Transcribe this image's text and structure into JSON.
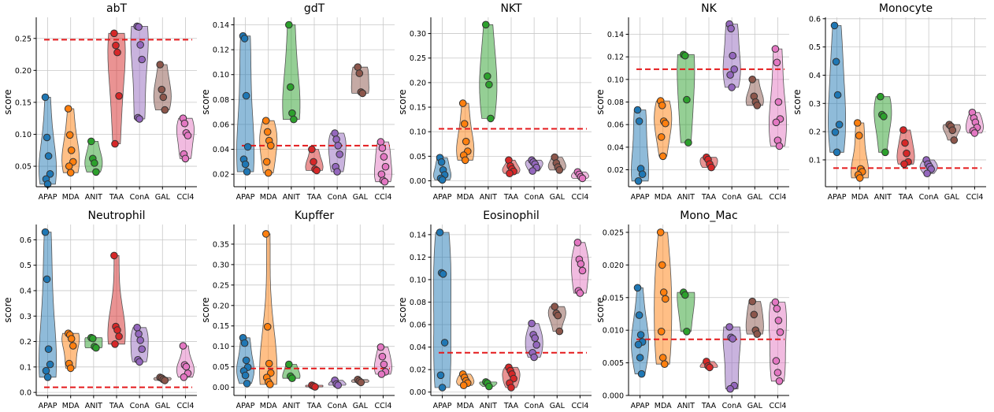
{
  "figure": {
    "categories": [
      "APAP",
      "MDA",
      "ANIT",
      "TAA",
      "ConA",
      "GAL",
      "CCl4"
    ],
    "ylabel": "score",
    "colors": [
      "#1f77b4",
      "#ff7f0e",
      "#2ca02c",
      "#d62728",
      "#9467bd",
      "#8c564b",
      "#e377c2"
    ],
    "threshold_color": "#e41a1c"
  },
  "chart_data": [
    {
      "type": "violin+strip",
      "title": "abT",
      "ylabel": "score",
      "yticks": [
        0.05,
        0.1,
        0.15,
        0.2,
        0.25
      ],
      "ytick_labels": [
        "0.05",
        "0.10",
        "0.15",
        "0.20",
        "0.25"
      ],
      "ylim": [
        0.018,
        0.283
      ],
      "threshold": 0.248,
      "series": [
        {
          "name": "APAP",
          "values": [
            0.158,
            0.095,
            0.066,
            0.038,
            0.03,
            0.022
          ]
        },
        {
          "name": "MDA",
          "values": [
            0.14,
            0.099,
            0.075,
            0.057,
            0.05,
            0.04
          ]
        },
        {
          "name": "ANIT",
          "values": [
            0.089,
            0.062,
            0.055,
            0.041
          ]
        },
        {
          "name": "TAA",
          "values": [
            0.258,
            0.239,
            0.228,
            0.16,
            0.085
          ]
        },
        {
          "name": "ConA",
          "values": [
            0.269,
            0.268,
            0.24,
            0.217,
            0.126,
            0.124
          ]
        },
        {
          "name": "GAL",
          "values": [
            0.209,
            0.17,
            0.158,
            0.138
          ]
        },
        {
          "name": "CCl4",
          "values": [
            0.125,
            0.117,
            0.102,
            0.098,
            0.069,
            0.062
          ]
        }
      ]
    },
    {
      "type": "violin+strip",
      "title": "gdT",
      "ylabel": "score",
      "yticks": [
        0.02,
        0.04,
        0.06,
        0.08,
        0.1,
        0.12,
        0.14
      ],
      "ytick_labels": [
        "0.02",
        "0.04",
        "0.06",
        "0.08",
        "0.10",
        "0.12",
        "0.14"
      ],
      "ylim": [
        0.01,
        0.146
      ],
      "threshold": 0.043,
      "series": [
        {
          "name": "APAP",
          "values": [
            0.131,
            0.129,
            0.083,
            0.042,
            0.032,
            0.028,
            0.022
          ]
        },
        {
          "name": "MDA",
          "values": [
            0.063,
            0.054,
            0.047,
            0.043,
            0.03,
            0.021
          ]
        },
        {
          "name": "ANIT",
          "values": [
            0.14,
            0.09,
            0.069,
            0.064
          ]
        },
        {
          "name": "TAA",
          "values": [
            0.04,
            0.03,
            0.024,
            0.023
          ]
        },
        {
          "name": "ConA",
          "values": [
            0.053,
            0.048,
            0.043,
            0.036,
            0.026,
            0.022
          ]
        },
        {
          "name": "GAL",
          "values": [
            0.106,
            0.101,
            0.086,
            0.085
          ]
        },
        {
          "name": "CCl4",
          "values": [
            0.046,
            0.041,
            0.034,
            0.026,
            0.02,
            0.015,
            0.014
          ]
        }
      ]
    },
    {
      "type": "violin+strip",
      "title": "NKT",
      "ylabel": "score",
      "yticks": [
        0.0,
        0.05,
        0.1,
        0.15,
        0.2,
        0.25,
        0.3
      ],
      "ytick_labels": [
        "0.00",
        "0.05",
        "0.10",
        "0.15",
        "0.20",
        "0.25",
        "0.30"
      ],
      "ylim": [
        -0.012,
        0.333
      ],
      "threshold": 0.106,
      "series": [
        {
          "name": "APAP",
          "values": [
            0.047,
            0.038,
            0.022,
            0.012,
            0.005,
            0.002
          ]
        },
        {
          "name": "MDA",
          "values": [
            0.158,
            0.116,
            0.08,
            0.06,
            0.052,
            0.042
          ]
        },
        {
          "name": "ANIT",
          "values": [
            0.318,
            0.213,
            0.196,
            0.127
          ]
        },
        {
          "name": "TAA",
          "values": [
            0.042,
            0.03,
            0.024,
            0.019,
            0.015
          ]
        },
        {
          "name": "ConA",
          "values": [
            0.042,
            0.038,
            0.034,
            0.027,
            0.02
          ]
        },
        {
          "name": "GAL",
          "values": [
            0.048,
            0.036,
            0.028,
            0.022
          ]
        },
        {
          "name": "CCl4",
          "values": [
            0.018,
            0.013,
            0.008,
            0.005
          ]
        }
      ]
    },
    {
      "type": "violin+strip",
      "title": "NK",
      "ylabel": "score",
      "yticks": [
        0.02,
        0.04,
        0.06,
        0.08,
        0.1,
        0.12,
        0.14
      ],
      "ytick_labels": [
        "0.02",
        "0.04",
        "0.06",
        "0.08",
        "0.10",
        "0.12",
        "0.14"
      ],
      "ylim": [
        0.005,
        0.155
      ],
      "threshold": 0.109,
      "series": [
        {
          "name": "APAP",
          "values": [
            0.073,
            0.063,
            0.021,
            0.016,
            0.01
          ]
        },
        {
          "name": "MDA",
          "values": [
            0.081,
            0.077,
            0.063,
            0.061,
            0.049,
            0.032
          ]
        },
        {
          "name": "ANIT",
          "values": [
            0.122,
            0.121,
            0.082,
            0.044
          ]
        },
        {
          "name": "TAA",
          "values": [
            0.031,
            0.029,
            0.025,
            0.022
          ]
        },
        {
          "name": "ConA",
          "values": [
            0.149,
            0.145,
            0.121,
            0.109,
            0.104,
            0.093
          ]
        },
        {
          "name": "GAL",
          "values": [
            0.1,
            0.085,
            0.08,
            0.077
          ]
        },
        {
          "name": "CCl4",
          "values": [
            0.127,
            0.115,
            0.08,
            0.065,
            0.062,
            0.046,
            0.041
          ]
        }
      ]
    },
    {
      "type": "violin+strip",
      "title": "Monocyte",
      "ylabel": "score",
      "yticks": [
        0.1,
        0.2,
        0.3,
        0.4,
        0.5,
        0.6
      ],
      "ytick_labels": [
        "0.1",
        "0.2",
        "0.3",
        "0.4",
        "0.5",
        "0.6"
      ],
      "ylim": [
        0.005,
        0.605
      ],
      "threshold": 0.071,
      "series": [
        {
          "name": "APAP",
          "values": [
            0.576,
            0.448,
            0.33,
            0.225,
            0.198,
            0.127
          ]
        },
        {
          "name": "MDA",
          "values": [
            0.231,
            0.186,
            0.068,
            0.058,
            0.047,
            0.036
          ]
        },
        {
          "name": "ANIT",
          "values": [
            0.324,
            0.26,
            0.254,
            0.127
          ]
        },
        {
          "name": "TAA",
          "values": [
            0.206,
            0.16,
            0.123,
            0.093,
            0.085
          ]
        },
        {
          "name": "ConA",
          "values": [
            0.1,
            0.085,
            0.076,
            0.067,
            0.052
          ]
        },
        {
          "name": "GAL",
          "values": [
            0.225,
            0.219,
            0.205,
            0.17
          ]
        },
        {
          "name": "CCl4",
          "values": [
            0.268,
            0.248,
            0.233,
            0.215,
            0.203,
            0.195
          ]
        }
      ]
    },
    {
      "type": "violin+strip",
      "title": "Neutrophil",
      "ylabel": "score",
      "yticks": [
        0.0,
        0.1,
        0.2,
        0.3,
        0.4,
        0.5,
        0.6
      ],
      "ytick_labels": [
        "0.0",
        "0.1",
        "0.2",
        "0.3",
        "0.4",
        "0.5",
        "0.6"
      ],
      "ylim": [
        -0.012,
        0.66
      ],
      "threshold": 0.02,
      "series": [
        {
          "name": "APAP",
          "values": [
            0.63,
            0.445,
            0.17,
            0.11,
            0.085,
            0.06
          ]
        },
        {
          "name": "MDA",
          "values": [
            0.232,
            0.226,
            0.211,
            0.183,
            0.113,
            0.095
          ]
        },
        {
          "name": "ANIT",
          "values": [
            0.215,
            0.212,
            0.18,
            0.175
          ]
        },
        {
          "name": "TAA",
          "values": [
            0.538,
            0.259,
            0.245,
            0.22,
            0.19
          ]
        },
        {
          "name": "ConA",
          "values": [
            0.255,
            0.23,
            0.205,
            0.17,
            0.128,
            0.12
          ]
        },
        {
          "name": "GAL",
          "values": [
            0.059,
            0.056,
            0.051,
            0.047
          ]
        },
        {
          "name": "CCl4",
          "values": [
            0.183,
            0.108,
            0.101,
            0.075,
            0.06
          ]
        }
      ]
    },
    {
      "type": "violin+strip",
      "title": "Kupffer",
      "ylabel": "score",
      "yticks": [
        0.0,
        0.05,
        0.1,
        0.15,
        0.2,
        0.25,
        0.3,
        0.35
      ],
      "ytick_labels": [
        "0.00",
        "0.05",
        "0.10",
        "0.15",
        "0.20",
        "0.25",
        "0.30",
        "0.35"
      ],
      "ylim": [
        -0.02,
        0.398
      ],
      "threshold": 0.046,
      "series": [
        {
          "name": "APAP",
          "values": [
            0.121,
            0.108,
            0.066,
            0.049,
            0.04,
            0.029,
            0.009
          ]
        },
        {
          "name": "MDA",
          "values": [
            0.375,
            0.148,
            0.058,
            0.035,
            0.024,
            0.013,
            0.007
          ]
        },
        {
          "name": "ANIT",
          "values": [
            0.056,
            0.027,
            0.022
          ]
        },
        {
          "name": "TAA",
          "values": [
            0.005,
            0.003,
            0.001
          ]
        },
        {
          "name": "ConA",
          "values": [
            0.017,
            0.008,
            0.005
          ]
        },
        {
          "name": "GAL",
          "values": [
            0.019,
            0.015,
            0.012
          ]
        },
        {
          "name": "CCl4",
          "values": [
            0.098,
            0.075,
            0.056,
            0.038,
            0.032
          ]
        }
      ]
    },
    {
      "type": "violin+strip",
      "title": "Eosinophil",
      "ylabel": "score",
      "yticks": [
        0.0,
        0.02,
        0.04,
        0.06,
        0.08,
        0.1,
        0.12,
        0.14
      ],
      "ytick_labels": [
        "0.00",
        "0.02",
        "0.04",
        "0.06",
        "0.08",
        "0.10",
        "0.12",
        "0.14"
      ],
      "ylim": [
        -0.003,
        0.149
      ],
      "threshold": 0.035,
      "series": [
        {
          "name": "APAP",
          "values": [
            0.142,
            0.106,
            0.105,
            0.044,
            0.015,
            0.004
          ]
        },
        {
          "name": "MDA",
          "values": [
            0.016,
            0.013,
            0.01,
            0.008,
            0.006
          ]
        },
        {
          "name": "ANIT",
          "values": [
            0.009,
            0.008,
            0.005
          ]
        },
        {
          "name": "TAA",
          "values": [
            0.022,
            0.019,
            0.016,
            0.012,
            0.008,
            0.004
          ]
        },
        {
          "name": "ConA",
          "values": [
            0.061,
            0.051,
            0.048,
            0.042,
            0.035,
            0.031
          ]
        },
        {
          "name": "GAL",
          "values": [
            0.076,
            0.07,
            0.068,
            0.054
          ]
        },
        {
          "name": "CCl4",
          "values": [
            0.133,
            0.118,
            0.114,
            0.108,
            0.09,
            0.088
          ]
        }
      ]
    },
    {
      "type": "violin+strip",
      "title": "Mono_Mac",
      "ylabel": "score",
      "yticks": [
        0.0,
        0.005,
        0.01,
        0.015,
        0.02,
        0.025
      ],
      "ytick_labels": [
        "0.000",
        "0.005",
        "0.010",
        "0.015",
        "0.020",
        "0.025"
      ],
      "ylim": [
        0.0,
        0.0262
      ],
      "threshold": 0.0086,
      "series": [
        {
          "name": "APAP",
          "values": [
            0.0165,
            0.0123,
            0.0093,
            0.0082,
            0.0078,
            0.0058,
            0.0033
          ]
        },
        {
          "name": "MDA",
          "values": [
            0.025,
            0.02,
            0.0158,
            0.0148,
            0.0098,
            0.0058,
            0.0048
          ]
        },
        {
          "name": "ANIT",
          "values": [
            0.0158,
            0.0154,
            0.0098
          ]
        },
        {
          "name": "TAA",
          "values": [
            0.0052,
            0.0045,
            0.0043
          ]
        },
        {
          "name": "ConA",
          "values": [
            0.0105,
            0.0089,
            0.0087,
            0.0015,
            0.001
          ]
        },
        {
          "name": "GAL",
          "values": [
            0.0144,
            0.0124,
            0.01,
            0.0094
          ]
        },
        {
          "name": "CCl4",
          "values": [
            0.0143,
            0.0133,
            0.0115,
            0.0097,
            0.0053,
            0.0035,
            0.0022
          ]
        }
      ]
    }
  ]
}
